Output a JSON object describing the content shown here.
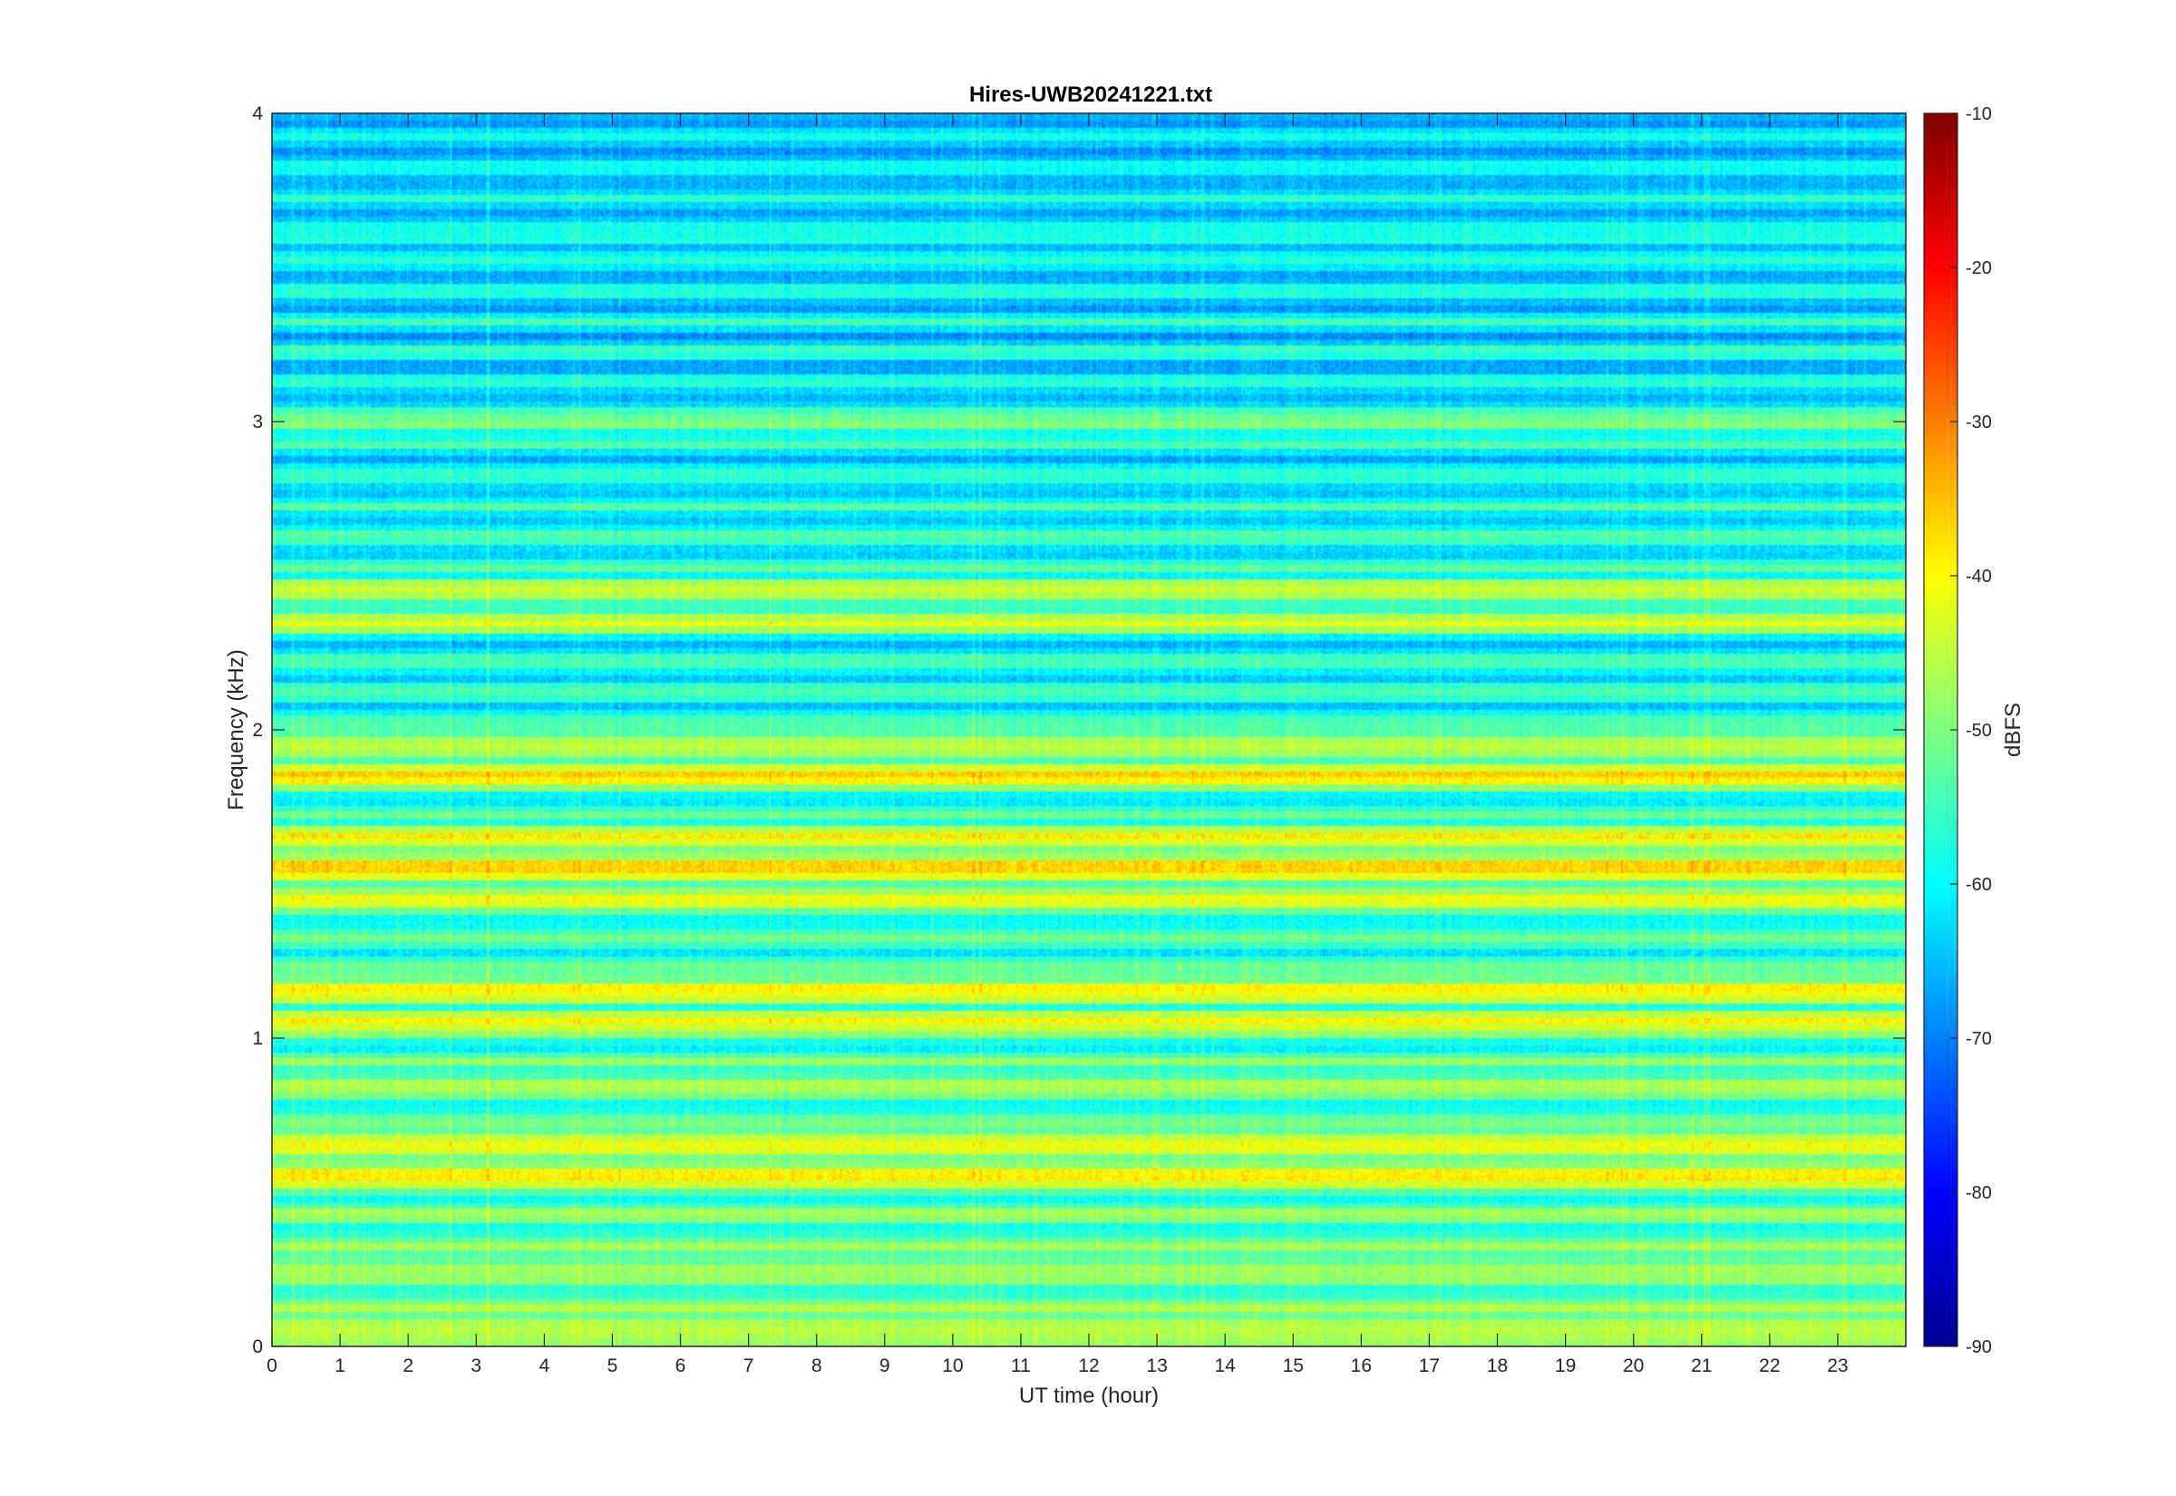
{
  "chart_data": {
    "type": "heatmap",
    "title": "Hires-UWB20241221.txt",
    "xlabel": "UT time (hour)",
    "ylabel": "Frequency (kHz)",
    "xlim": [
      0,
      24
    ],
    "ylim": [
      0,
      4
    ],
    "x_ticks": [
      "0",
      "1",
      "2",
      "3",
      "4",
      "5",
      "6",
      "7",
      "8",
      "9",
      "10",
      "11",
      "12",
      "13",
      "14",
      "15",
      "16",
      "17",
      "18",
      "19",
      "20",
      "21",
      "22",
      "23"
    ],
    "y_ticks": [
      "0",
      "1",
      "2",
      "3",
      "4"
    ],
    "colormap": "jet",
    "colorbar": {
      "label": "dBFS",
      "range": [
        -90,
        -10
      ],
      "ticks": [
        "-10",
        "-20",
        "-30",
        "-40",
        "-50",
        "-60",
        "-70",
        "-80",
        "-90"
      ]
    },
    "bands_khz": [
      {
        "freq": 0.05,
        "level_dbfs": -43
      },
      {
        "freq": 0.25,
        "level_dbfs": -46
      },
      {
        "freq": 0.55,
        "level_dbfs": -38
      },
      {
        "freq": 0.65,
        "level_dbfs": -40
      },
      {
        "freq": 0.85,
        "level_dbfs": -47
      },
      {
        "freq": 1.05,
        "level_dbfs": -40
      },
      {
        "freq": 1.15,
        "level_dbfs": -39
      },
      {
        "freq": 1.45,
        "level_dbfs": -42
      },
      {
        "freq": 1.55,
        "level_dbfs": -36
      },
      {
        "freq": 1.65,
        "level_dbfs": -40
      },
      {
        "freq": 1.85,
        "level_dbfs": -37
      },
      {
        "freq": 1.95,
        "level_dbfs": -44
      },
      {
        "freq": 2.35,
        "level_dbfs": -44
      },
      {
        "freq": 2.45,
        "level_dbfs": -43
      },
      {
        "freq": 3.0,
        "level_dbfs": -51
      },
      {
        "freq": 3.6,
        "level_dbfs": -58
      },
      {
        "freq": 3.9,
        "level_dbfs": -64
      }
    ]
  }
}
